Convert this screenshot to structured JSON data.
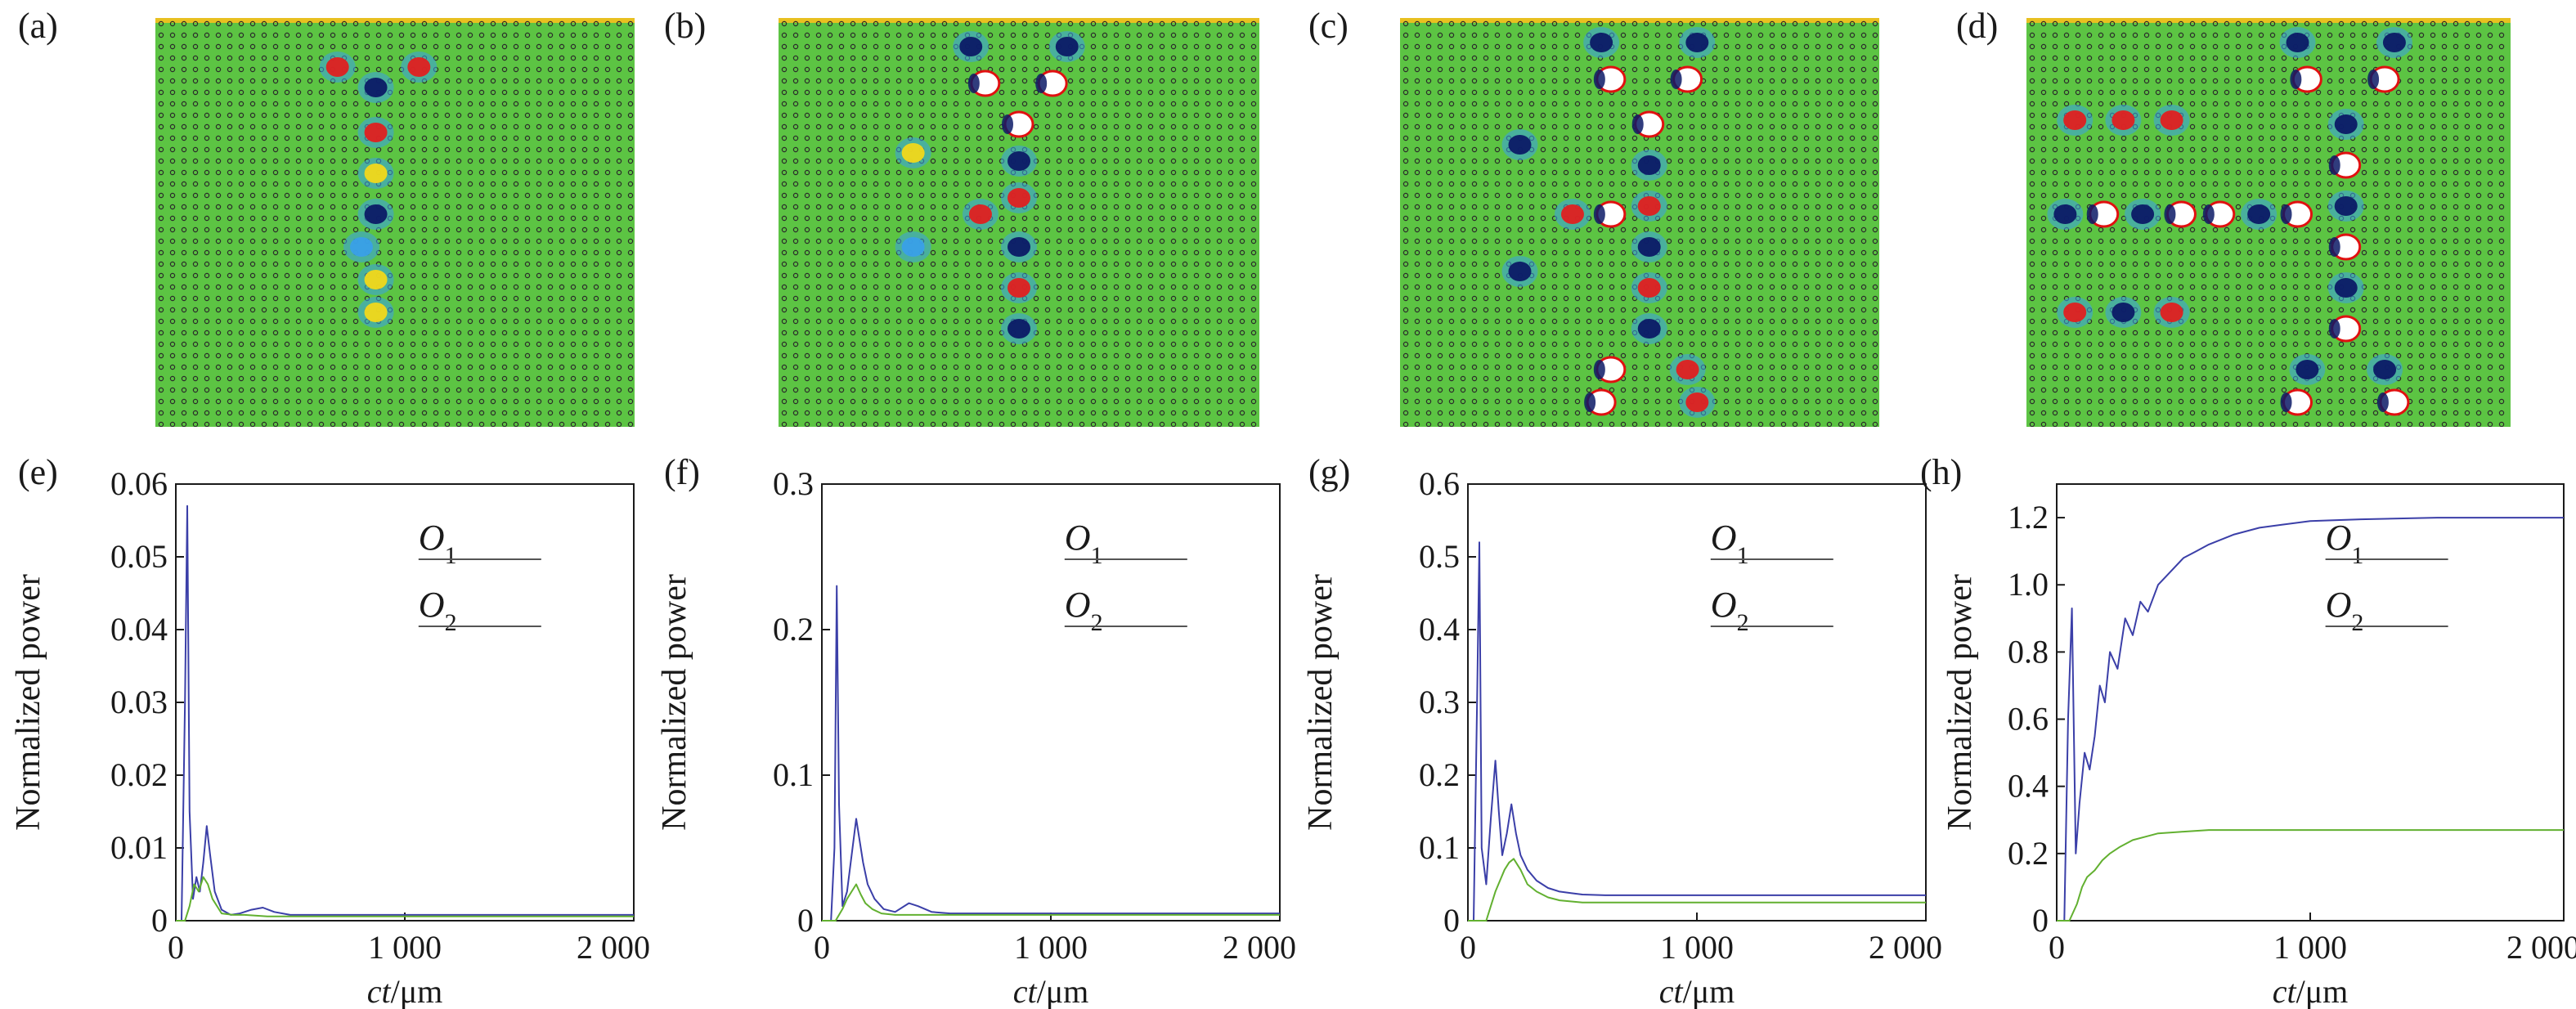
{
  "colors": {
    "field_background": "#5cc443",
    "hole": "#2a2a2a",
    "field_positive": "#e02020",
    "field_negative": "#0c1a66",
    "field_mid_positive": "#f2d81a",
    "field_mid_negative": "#3aa0e8",
    "ring_edge": "#e01010",
    "O1_line": "#3b3fa8",
    "O2_line": "#62b030",
    "axes": "#1a1a1a"
  },
  "field_panels": [
    {
      "id": "a",
      "label": "(a)"
    },
    {
      "id": "b",
      "label": "(b)"
    },
    {
      "id": "c",
      "label": "(c)"
    },
    {
      "id": "d",
      "label": "(d)"
    }
  ],
  "chart_data": [
    {
      "id": "e",
      "label": "(e)",
      "type": "line",
      "xlabel_italic": "ct",
      "xlabel_rest": "/μm",
      "ylabel": "Normalized power",
      "xlim": [
        0,
        2000
      ],
      "ylim": [
        0,
        0.06
      ],
      "xticks": [
        0,
        1000,
        2000
      ],
      "xtick_labels": [
        "0",
        "1 000",
        "2 000"
      ],
      "yticks": [
        0,
        0.01,
        0.02,
        0.03,
        0.04,
        0.05,
        0.06
      ],
      "ytick_labels": [
        "0",
        "0.01",
        "0.02",
        "0.03",
        "0.04",
        "0.05",
        "0.06"
      ],
      "legend": [
        {
          "name": "O",
          "sub": "1"
        },
        {
          "name": "O",
          "sub": "2"
        }
      ],
      "series": [
        {
          "key": "O1",
          "color": "#3b3fa8",
          "x": [
            0,
            25,
            40,
            50,
            60,
            75,
            90,
            105,
            120,
            135,
            150,
            170,
            200,
            240,
            280,
            330,
            380,
            430,
            500,
            600,
            800,
            1000,
            1500,
            2000
          ],
          "y": [
            0,
            0.0,
            0.03,
            0.057,
            0.015,
            0.003,
            0.006,
            0.004,
            0.008,
            0.013,
            0.009,
            0.004,
            0.0015,
            0.0008,
            0.001,
            0.0015,
            0.0018,
            0.0012,
            0.0008,
            0.0008,
            0.0008,
            0.0008,
            0.0008,
            0.0008
          ]
        },
        {
          "key": "O2",
          "color": "#62b030",
          "x": [
            0,
            40,
            60,
            80,
            100,
            120,
            140,
            160,
            200,
            250,
            300,
            400,
            600,
            1000,
            2000
          ],
          "y": [
            0,
            0.0,
            0.002,
            0.005,
            0.004,
            0.006,
            0.005,
            0.003,
            0.001,
            0.0008,
            0.0008,
            0.0006,
            0.0006,
            0.0006,
            0.0006
          ]
        }
      ]
    },
    {
      "id": "f",
      "label": "(f)",
      "type": "line",
      "xlabel_italic": "ct",
      "xlabel_rest": "/μm",
      "ylabel": "Normalized power",
      "xlim": [
        0,
        2000
      ],
      "ylim": [
        0,
        0.3
      ],
      "xticks": [
        0,
        1000,
        2000
      ],
      "xtick_labels": [
        "0",
        "1 000",
        "2 000"
      ],
      "yticks": [
        0,
        0.1,
        0.2,
        0.3
      ],
      "ytick_labels": [
        "0",
        "0.1",
        "0.2",
        "0.3"
      ],
      "legend": [
        {
          "name": "O",
          "sub": "1"
        },
        {
          "name": "O",
          "sub": "2"
        }
      ],
      "series": [
        {
          "key": "O1",
          "color": "#3b3fa8",
          "x": [
            0,
            40,
            55,
            65,
            75,
            90,
            110,
            130,
            150,
            165,
            180,
            200,
            230,
            270,
            320,
            380,
            420,
            480,
            560,
            700,
            1000,
            1500,
            2000
          ],
          "y": [
            0,
            0.0,
            0.05,
            0.23,
            0.08,
            0.01,
            0.02,
            0.045,
            0.07,
            0.055,
            0.04,
            0.025,
            0.015,
            0.008,
            0.006,
            0.012,
            0.01,
            0.006,
            0.005,
            0.005,
            0.005,
            0.005,
            0.005
          ]
        },
        {
          "key": "O2",
          "color": "#62b030",
          "x": [
            0,
            60,
            90,
            110,
            130,
            150,
            170,
            190,
            220,
            260,
            320,
            400,
            600,
            1000,
            2000
          ],
          "y": [
            0,
            0.0,
            0.008,
            0.015,
            0.02,
            0.025,
            0.018,
            0.012,
            0.008,
            0.005,
            0.004,
            0.004,
            0.004,
            0.004,
            0.004
          ]
        }
      ]
    },
    {
      "id": "g",
      "label": "(g)",
      "type": "line",
      "xlabel_italic": "ct",
      "xlabel_rest": "/μm",
      "ylabel": "Normalized power",
      "xlim": [
        0,
        2000
      ],
      "ylim": [
        0,
        0.6
      ],
      "xticks": [
        0,
        1000,
        2000
      ],
      "xtick_labels": [
        "0",
        "1 000",
        "2 000"
      ],
      "yticks": [
        0,
        0.1,
        0.2,
        0.3,
        0.4,
        0.5,
        0.6
      ],
      "ytick_labels": [
        "0",
        "0.1",
        "0.2",
        "0.3",
        "0.4",
        "0.5",
        "0.6"
      ],
      "legend": [
        {
          "name": "O",
          "sub": "1"
        },
        {
          "name": "O",
          "sub": "2"
        }
      ],
      "series": [
        {
          "key": "O1",
          "color": "#3b3fa8",
          "x": [
            0,
            25,
            40,
            50,
            60,
            80,
            100,
            120,
            135,
            150,
            170,
            190,
            210,
            230,
            260,
            300,
            350,
            400,
            450,
            500,
            600,
            800,
            1000,
            1500,
            2000
          ],
          "y": [
            0,
            0.0,
            0.3,
            0.52,
            0.1,
            0.05,
            0.14,
            0.22,
            0.15,
            0.09,
            0.12,
            0.16,
            0.12,
            0.09,
            0.07,
            0.055,
            0.045,
            0.04,
            0.038,
            0.036,
            0.035,
            0.035,
            0.035,
            0.035,
            0.035
          ]
        },
        {
          "key": "O2",
          "color": "#62b030",
          "x": [
            0,
            80,
            100,
            120,
            140,
            160,
            180,
            200,
            230,
            260,
            300,
            350,
            400,
            500,
            700,
            1000,
            2000
          ],
          "y": [
            0,
            0.0,
            0.02,
            0.04,
            0.055,
            0.07,
            0.08,
            0.085,
            0.07,
            0.05,
            0.04,
            0.032,
            0.028,
            0.025,
            0.025,
            0.025,
            0.025
          ]
        }
      ]
    },
    {
      "id": "h",
      "label": "(h)",
      "type": "line",
      "xlabel_italic": "ct",
      "xlabel_rest": "/μm",
      "ylabel": "Normalized power",
      "xlim": [
        0,
        2000
      ],
      "ylim": [
        0,
        1.3
      ],
      "xticks": [
        0,
        1000,
        2000
      ],
      "xtick_labels": [
        "0",
        "1 000",
        "2 000"
      ],
      "yticks": [
        0,
        0.2,
        0.4,
        0.6,
        0.8,
        1.0,
        1.2
      ],
      "ytick_labels": [
        "0",
        "0.2",
        "0.4",
        "0.6",
        "0.8",
        "1.0",
        "1.2"
      ],
      "legend": [
        {
          "name": "O",
          "sub": "1"
        },
        {
          "name": "O",
          "sub": "2"
        }
      ],
      "series": [
        {
          "key": "O1",
          "color": "#3b3fa8",
          "x": [
            0,
            30,
            45,
            60,
            75,
            90,
            110,
            130,
            150,
            170,
            190,
            210,
            240,
            270,
            300,
            330,
            360,
            400,
            450,
            500,
            550,
            600,
            700,
            800,
            900,
            1000,
            1200,
            1500,
            2000
          ],
          "y": [
            0,
            0.0,
            0.6,
            0.93,
            0.2,
            0.35,
            0.5,
            0.45,
            0.55,
            0.7,
            0.65,
            0.8,
            0.75,
            0.9,
            0.85,
            0.95,
            0.92,
            1.0,
            1.04,
            1.08,
            1.1,
            1.12,
            1.15,
            1.17,
            1.18,
            1.19,
            1.195,
            1.2,
            1.2
          ]
        },
        {
          "key": "O2",
          "color": "#62b030",
          "x": [
            0,
            50,
            80,
            100,
            120,
            150,
            180,
            210,
            250,
            300,
            350,
            400,
            500,
            600,
            800,
            1000,
            1500,
            2000
          ],
          "y": [
            0,
            0.0,
            0.05,
            0.1,
            0.13,
            0.15,
            0.18,
            0.2,
            0.22,
            0.24,
            0.25,
            0.26,
            0.265,
            0.27,
            0.27,
            0.27,
            0.27,
            0.27
          ]
        }
      ]
    }
  ]
}
